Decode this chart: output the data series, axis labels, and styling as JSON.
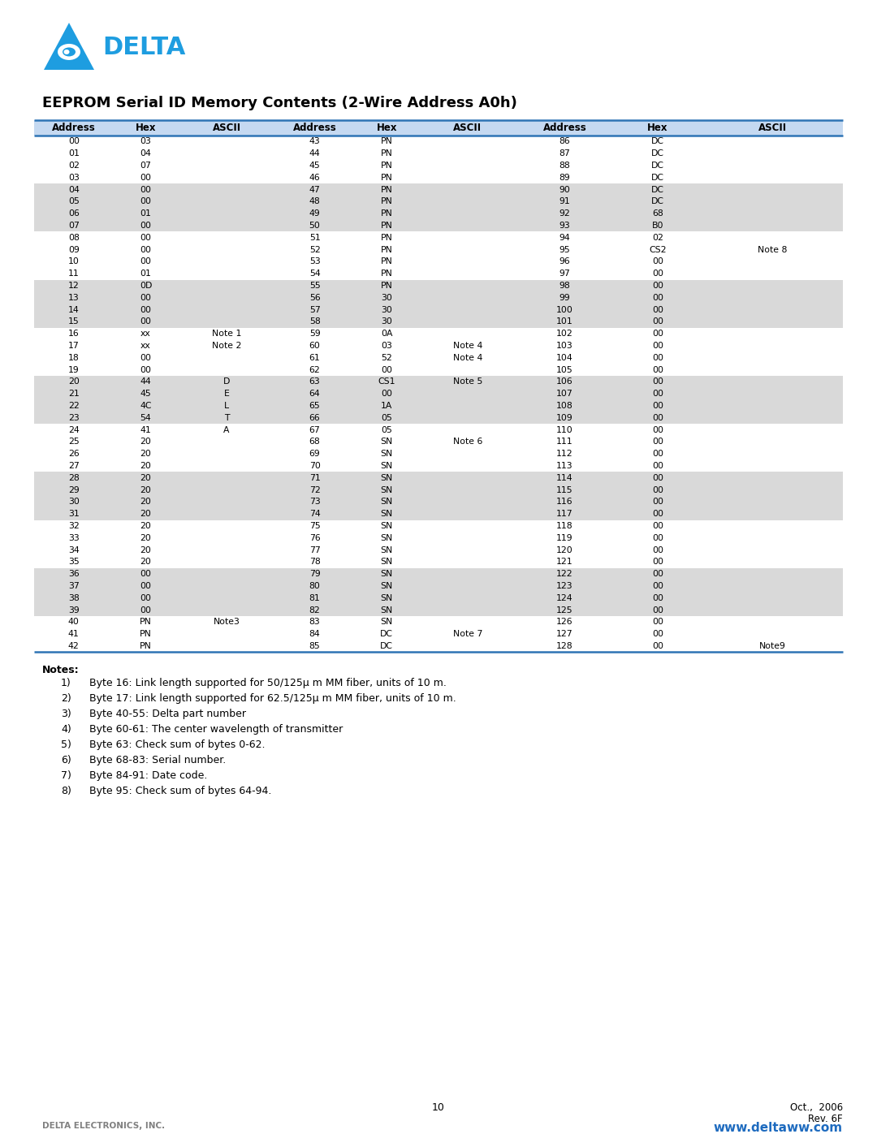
{
  "title": "EEPROM Serial ID Memory Contents (2-Wire Address A0h)",
  "header": [
    "Address",
    "Hex",
    "ASCII",
    "Address",
    "Hex",
    "ASCII",
    "Address",
    "Hex",
    "ASCII"
  ],
  "header_bg": "#c5d9f1",
  "header_line_color": "#2e74b5",
  "row_bg_white": "#ffffff",
  "row_bg_gray": "#d9d9d9",
  "rows": [
    [
      "00",
      "03",
      "",
      "43",
      "PN",
      "",
      "86",
      "DC",
      ""
    ],
    [
      "01",
      "04",
      "",
      "44",
      "PN",
      "",
      "87",
      "DC",
      ""
    ],
    [
      "02",
      "07",
      "",
      "45",
      "PN",
      "",
      "88",
      "DC",
      ""
    ],
    [
      "03",
      "00",
      "",
      "46",
      "PN",
      "",
      "89",
      "DC",
      ""
    ],
    [
      "04",
      "00",
      "",
      "47",
      "PN",
      "",
      "90",
      "DC",
      ""
    ],
    [
      "05",
      "00",
      "",
      "48",
      "PN",
      "",
      "91",
      "DC",
      ""
    ],
    [
      "06",
      "01",
      "",
      "49",
      "PN",
      "",
      "92",
      "68",
      ""
    ],
    [
      "07",
      "00",
      "",
      "50",
      "PN",
      "",
      "93",
      "B0",
      ""
    ],
    [
      "08",
      "00",
      "",
      "51",
      "PN",
      "",
      "94",
      "02",
      ""
    ],
    [
      "09",
      "00",
      "",
      "52",
      "PN",
      "",
      "95",
      "CS2",
      "Note 8"
    ],
    [
      "10",
      "00",
      "",
      "53",
      "PN",
      "",
      "96",
      "00",
      ""
    ],
    [
      "11",
      "01",
      "",
      "54",
      "PN",
      "",
      "97",
      "00",
      ""
    ],
    [
      "12",
      "0D",
      "",
      "55",
      "PN",
      "",
      "98",
      "00",
      ""
    ],
    [
      "13",
      "00",
      "",
      "56",
      "30",
      "",
      "99",
      "00",
      ""
    ],
    [
      "14",
      "00",
      "",
      "57",
      "30",
      "",
      "100",
      "00",
      ""
    ],
    [
      "15",
      "00",
      "",
      "58",
      "30",
      "",
      "101",
      "00",
      ""
    ],
    [
      "16",
      "xx",
      "Note 1",
      "59",
      "0A",
      "",
      "102",
      "00",
      ""
    ],
    [
      "17",
      "xx",
      "Note 2",
      "60",
      "03",
      "Note 4",
      "103",
      "00",
      ""
    ],
    [
      "18",
      "00",
      "",
      "61",
      "52",
      "Note 4",
      "104",
      "00",
      ""
    ],
    [
      "19",
      "00",
      "",
      "62",
      "00",
      "",
      "105",
      "00",
      ""
    ],
    [
      "20",
      "44",
      "D",
      "63",
      "CS1",
      "Note 5",
      "106",
      "00",
      ""
    ],
    [
      "21",
      "45",
      "E",
      "64",
      "00",
      "",
      "107",
      "00",
      ""
    ],
    [
      "22",
      "4C",
      "L",
      "65",
      "1A",
      "",
      "108",
      "00",
      ""
    ],
    [
      "23",
      "54",
      "T",
      "66",
      "05",
      "",
      "109",
      "00",
      ""
    ],
    [
      "24",
      "41",
      "A",
      "67",
      "05",
      "",
      "110",
      "00",
      ""
    ],
    [
      "25",
      "20",
      "",
      "68",
      "SN",
      "Note 6",
      "111",
      "00",
      ""
    ],
    [
      "26",
      "20",
      "",
      "69",
      "SN",
      "",
      "112",
      "00",
      ""
    ],
    [
      "27",
      "20",
      "",
      "70",
      "SN",
      "",
      "113",
      "00",
      ""
    ],
    [
      "28",
      "20",
      "",
      "71",
      "SN",
      "",
      "114",
      "00",
      ""
    ],
    [
      "29",
      "20",
      "",
      "72",
      "SN",
      "",
      "115",
      "00",
      ""
    ],
    [
      "30",
      "20",
      "",
      "73",
      "SN",
      "",
      "116",
      "00",
      ""
    ],
    [
      "31",
      "20",
      "",
      "74",
      "SN",
      "",
      "117",
      "00",
      ""
    ],
    [
      "32",
      "20",
      "",
      "75",
      "SN",
      "",
      "118",
      "00",
      ""
    ],
    [
      "33",
      "20",
      "",
      "76",
      "SN",
      "",
      "119",
      "00",
      ""
    ],
    [
      "34",
      "20",
      "",
      "77",
      "SN",
      "",
      "120",
      "00",
      ""
    ],
    [
      "35",
      "20",
      "",
      "78",
      "SN",
      "",
      "121",
      "00",
      ""
    ],
    [
      "36",
      "00",
      "",
      "79",
      "SN",
      "",
      "122",
      "00",
      ""
    ],
    [
      "37",
      "00",
      "",
      "80",
      "SN",
      "",
      "123",
      "00",
      ""
    ],
    [
      "38",
      "00",
      "",
      "81",
      "SN",
      "",
      "124",
      "00",
      ""
    ],
    [
      "39",
      "00",
      "",
      "82",
      "SN",
      "",
      "125",
      "00",
      ""
    ],
    [
      "40",
      "PN",
      "Note3",
      "83",
      "SN",
      "",
      "126",
      "00",
      ""
    ],
    [
      "41",
      "PN",
      "",
      "84",
      "DC",
      "Note 7",
      "127",
      "00",
      ""
    ],
    [
      "42",
      "PN",
      "",
      "85",
      "DC",
      "",
      "128",
      "00",
      "Note9"
    ]
  ],
  "gray_rows": [
    4,
    5,
    6,
    7,
    12,
    13,
    14,
    15,
    20,
    21,
    22,
    23,
    28,
    29,
    30,
    31,
    36,
    37,
    38,
    39
  ],
  "notes_label": "Notes:",
  "notes": [
    [
      "1)",
      "Byte 16: Link length supported for 50/125μ m MM fiber, units of 10 m."
    ],
    [
      "2)",
      "Byte 17: Link length supported for 62.5/125μ m MM fiber, units of 10 m."
    ],
    [
      "3)",
      "Byte 40-55: Delta part number"
    ],
    [
      "4)",
      "Byte 60-61: The center wavelength of transmitter"
    ],
    [
      "5)",
      "Byte 63: Check sum of bytes 0-62."
    ],
    [
      "6)",
      "Byte 68-83: Serial number."
    ],
    [
      "7)",
      "Byte 84-91: Date code."
    ],
    [
      "8)",
      "Byte 95: Check sum of bytes 64-94."
    ]
  ],
  "page_number": "10",
  "date_line1": "Oct.,  2006",
  "date_line2": "Rev. 6F",
  "footer_left": "DELTA ELECTRONICS, INC.",
  "footer_right": "www.deltaww.com",
  "footer_right_color": "#1e6bbf",
  "logo_color": "#1e9de0"
}
